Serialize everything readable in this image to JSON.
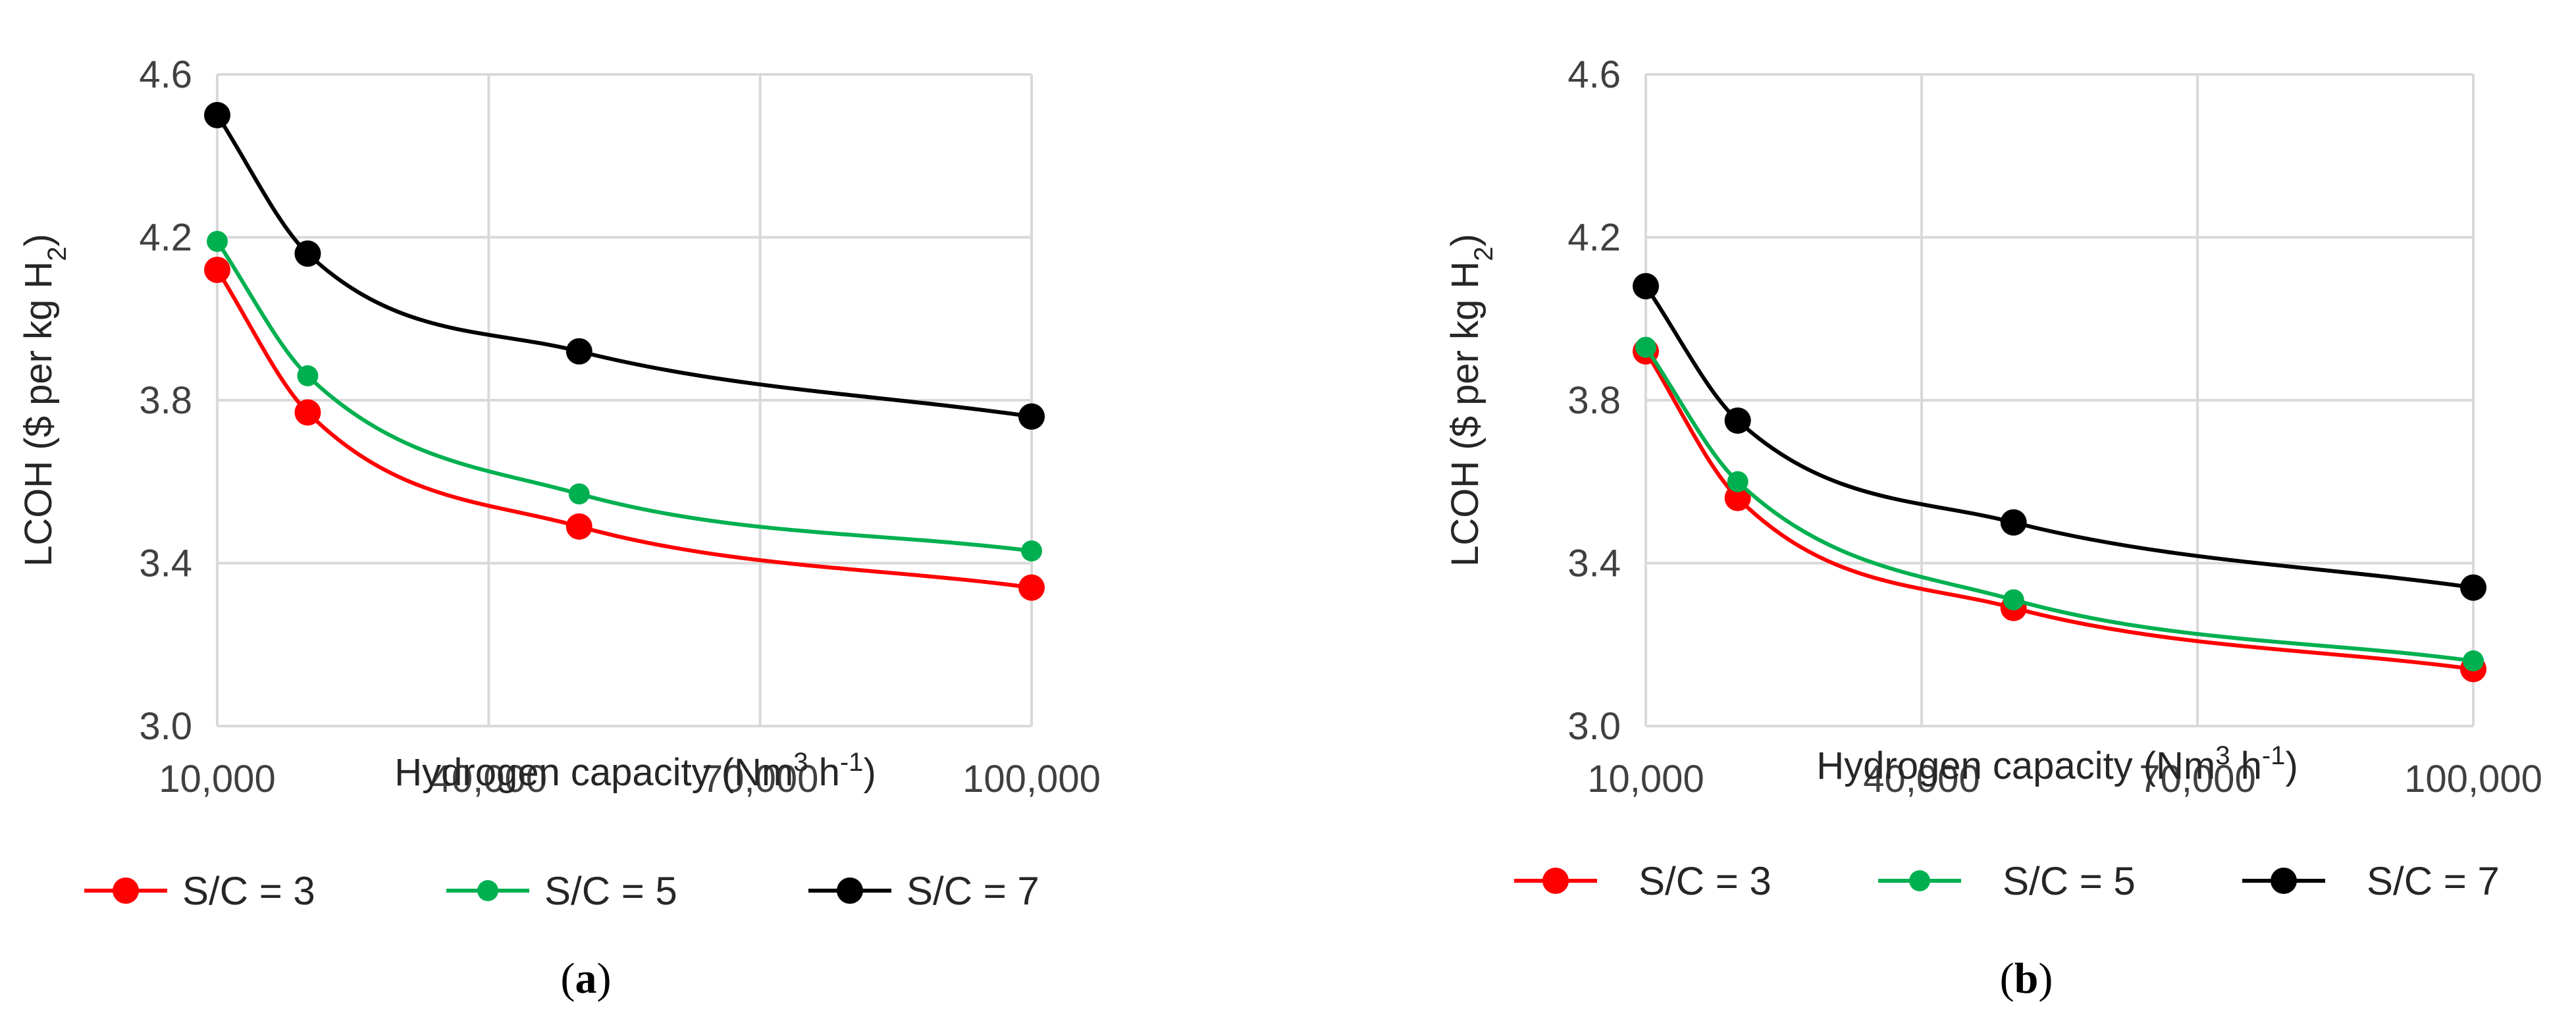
{
  "chart_data": [
    {
      "type": "line",
      "panel": "a",
      "panel_label": {
        "open": "(",
        "letter": "a",
        "close": ")"
      },
      "xlabel": {
        "main": "Hydrogen capacity (Nm",
        "sup1": "3",
        "mid": " h",
        "sup2": "-1",
        "end": ")"
      },
      "ylabel": {
        "main": "LCOH ($ per kg H",
        "sub": "2",
        "end": ")"
      },
      "xlim": [
        10000,
        100000
      ],
      "ylim": [
        3.0,
        4.6
      ],
      "x_ticks": [
        10000,
        40000,
        70000,
        100000
      ],
      "x_tick_labels": [
        "10,000",
        "40,000",
        "70,000",
        "100,000"
      ],
      "y_ticks": [
        3.0,
        3.4,
        3.8,
        4.2,
        4.6
      ],
      "y_tick_labels": [
        "3.0",
        "3.4",
        "3.8",
        "4.2",
        "4.6"
      ],
      "grid": true,
      "legend_position": "bottom",
      "series": [
        {
          "name": "S/C = 3",
          "color": "#ff0000",
          "x": [
            10000,
            20000,
            50000,
            100000
          ],
          "y": [
            4.12,
            3.77,
            3.49,
            3.34
          ]
        },
        {
          "name": "S/C = 5",
          "color": "#00b050",
          "x": [
            10000,
            20000,
            50000,
            100000
          ],
          "y": [
            4.19,
            3.86,
            3.57,
            3.43
          ]
        },
        {
          "name": "S/C = 7",
          "color": "#000000",
          "x": [
            10000,
            20000,
            50000,
            100000
          ],
          "y": [
            4.5,
            4.16,
            3.92,
            3.76
          ]
        }
      ]
    },
    {
      "type": "line",
      "panel": "b",
      "panel_label": {
        "open": "(",
        "letter": "b",
        "close": ")"
      },
      "xlabel": {
        "main": "Hydrogen capacity (Nm",
        "sup1": "3",
        "mid": " h",
        "sup2": "-1",
        "end": ")"
      },
      "ylabel": {
        "main": "LCOH ($ per kg H",
        "sub": "2",
        "end": ")"
      },
      "xlim": [
        10000,
        100000
      ],
      "ylim": [
        3.0,
        4.6
      ],
      "x_ticks": [
        10000,
        40000,
        70000,
        100000
      ],
      "x_tick_labels": [
        "10,000",
        "40,000",
        "70,000",
        "100,000"
      ],
      "y_ticks": [
        3.0,
        3.4,
        3.8,
        4.2,
        4.6
      ],
      "y_tick_labels": [
        "3.0",
        "3.4",
        "3.8",
        "4.2",
        "4.6"
      ],
      "grid": true,
      "legend_position": "bottom",
      "series": [
        {
          "name": "S/C = 3",
          "color": "#ff0000",
          "x": [
            10000,
            20000,
            50000,
            100000
          ],
          "y": [
            3.92,
            3.56,
            3.29,
            3.14
          ]
        },
        {
          "name": "S/C = 5",
          "color": "#00b050",
          "x": [
            10000,
            20000,
            50000,
            100000
          ],
          "y": [
            3.93,
            3.6,
            3.31,
            3.16
          ]
        },
        {
          "name": "S/C = 7",
          "color": "#000000",
          "x": [
            10000,
            20000,
            50000,
            100000
          ],
          "y": [
            4.08,
            3.75,
            3.5,
            3.34
          ]
        }
      ]
    }
  ]
}
